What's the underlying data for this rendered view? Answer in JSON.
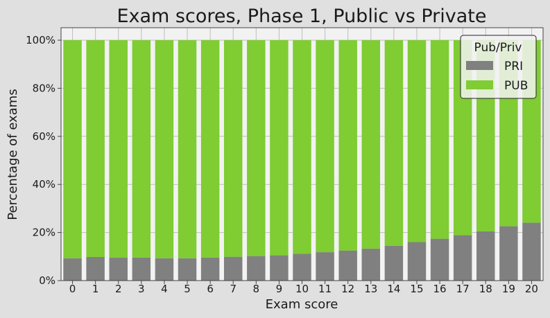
{
  "chart_data": {
    "type": "bar",
    "stacked": true,
    "percent": true,
    "title": "Exam scores, Phase 1, Public vs Private",
    "xlabel": "Exam score",
    "ylabel": "Percentage of exams",
    "categories": [
      "0",
      "1",
      "2",
      "3",
      "4",
      "5",
      "6",
      "7",
      "8",
      "9",
      "10",
      "11",
      "12",
      "13",
      "14",
      "15",
      "16",
      "17",
      "18",
      "19",
      "20"
    ],
    "ylim": [
      0,
      100
    ],
    "yticks": [
      0,
      20,
      40,
      60,
      80,
      100
    ],
    "ytick_labels": [
      "0%",
      "20%",
      "40%",
      "60%",
      "80%",
      "100%"
    ],
    "grid": true,
    "legend": {
      "title": "Pub/Priv",
      "placement": "top-right"
    },
    "series": [
      {
        "name": "PRI",
        "color": "#808080",
        "values": [
          9.3,
          9.8,
          9.5,
          9.6,
          9.3,
          9.3,
          9.6,
          9.9,
          10.2,
          10.5,
          11.1,
          11.8,
          12.5,
          13.3,
          14.5,
          16.0,
          17.4,
          18.9,
          20.5,
          22.6,
          24.1
        ]
      },
      {
        "name": "PUB",
        "color": "#7fcc33",
        "values": [
          90.7,
          90.2,
          90.5,
          90.4,
          90.7,
          90.7,
          90.4,
          90.1,
          89.8,
          89.5,
          88.9,
          88.2,
          87.5,
          86.7,
          85.5,
          84.0,
          82.6,
          81.1,
          79.5,
          77.4,
          75.9
        ]
      }
    ]
  }
}
